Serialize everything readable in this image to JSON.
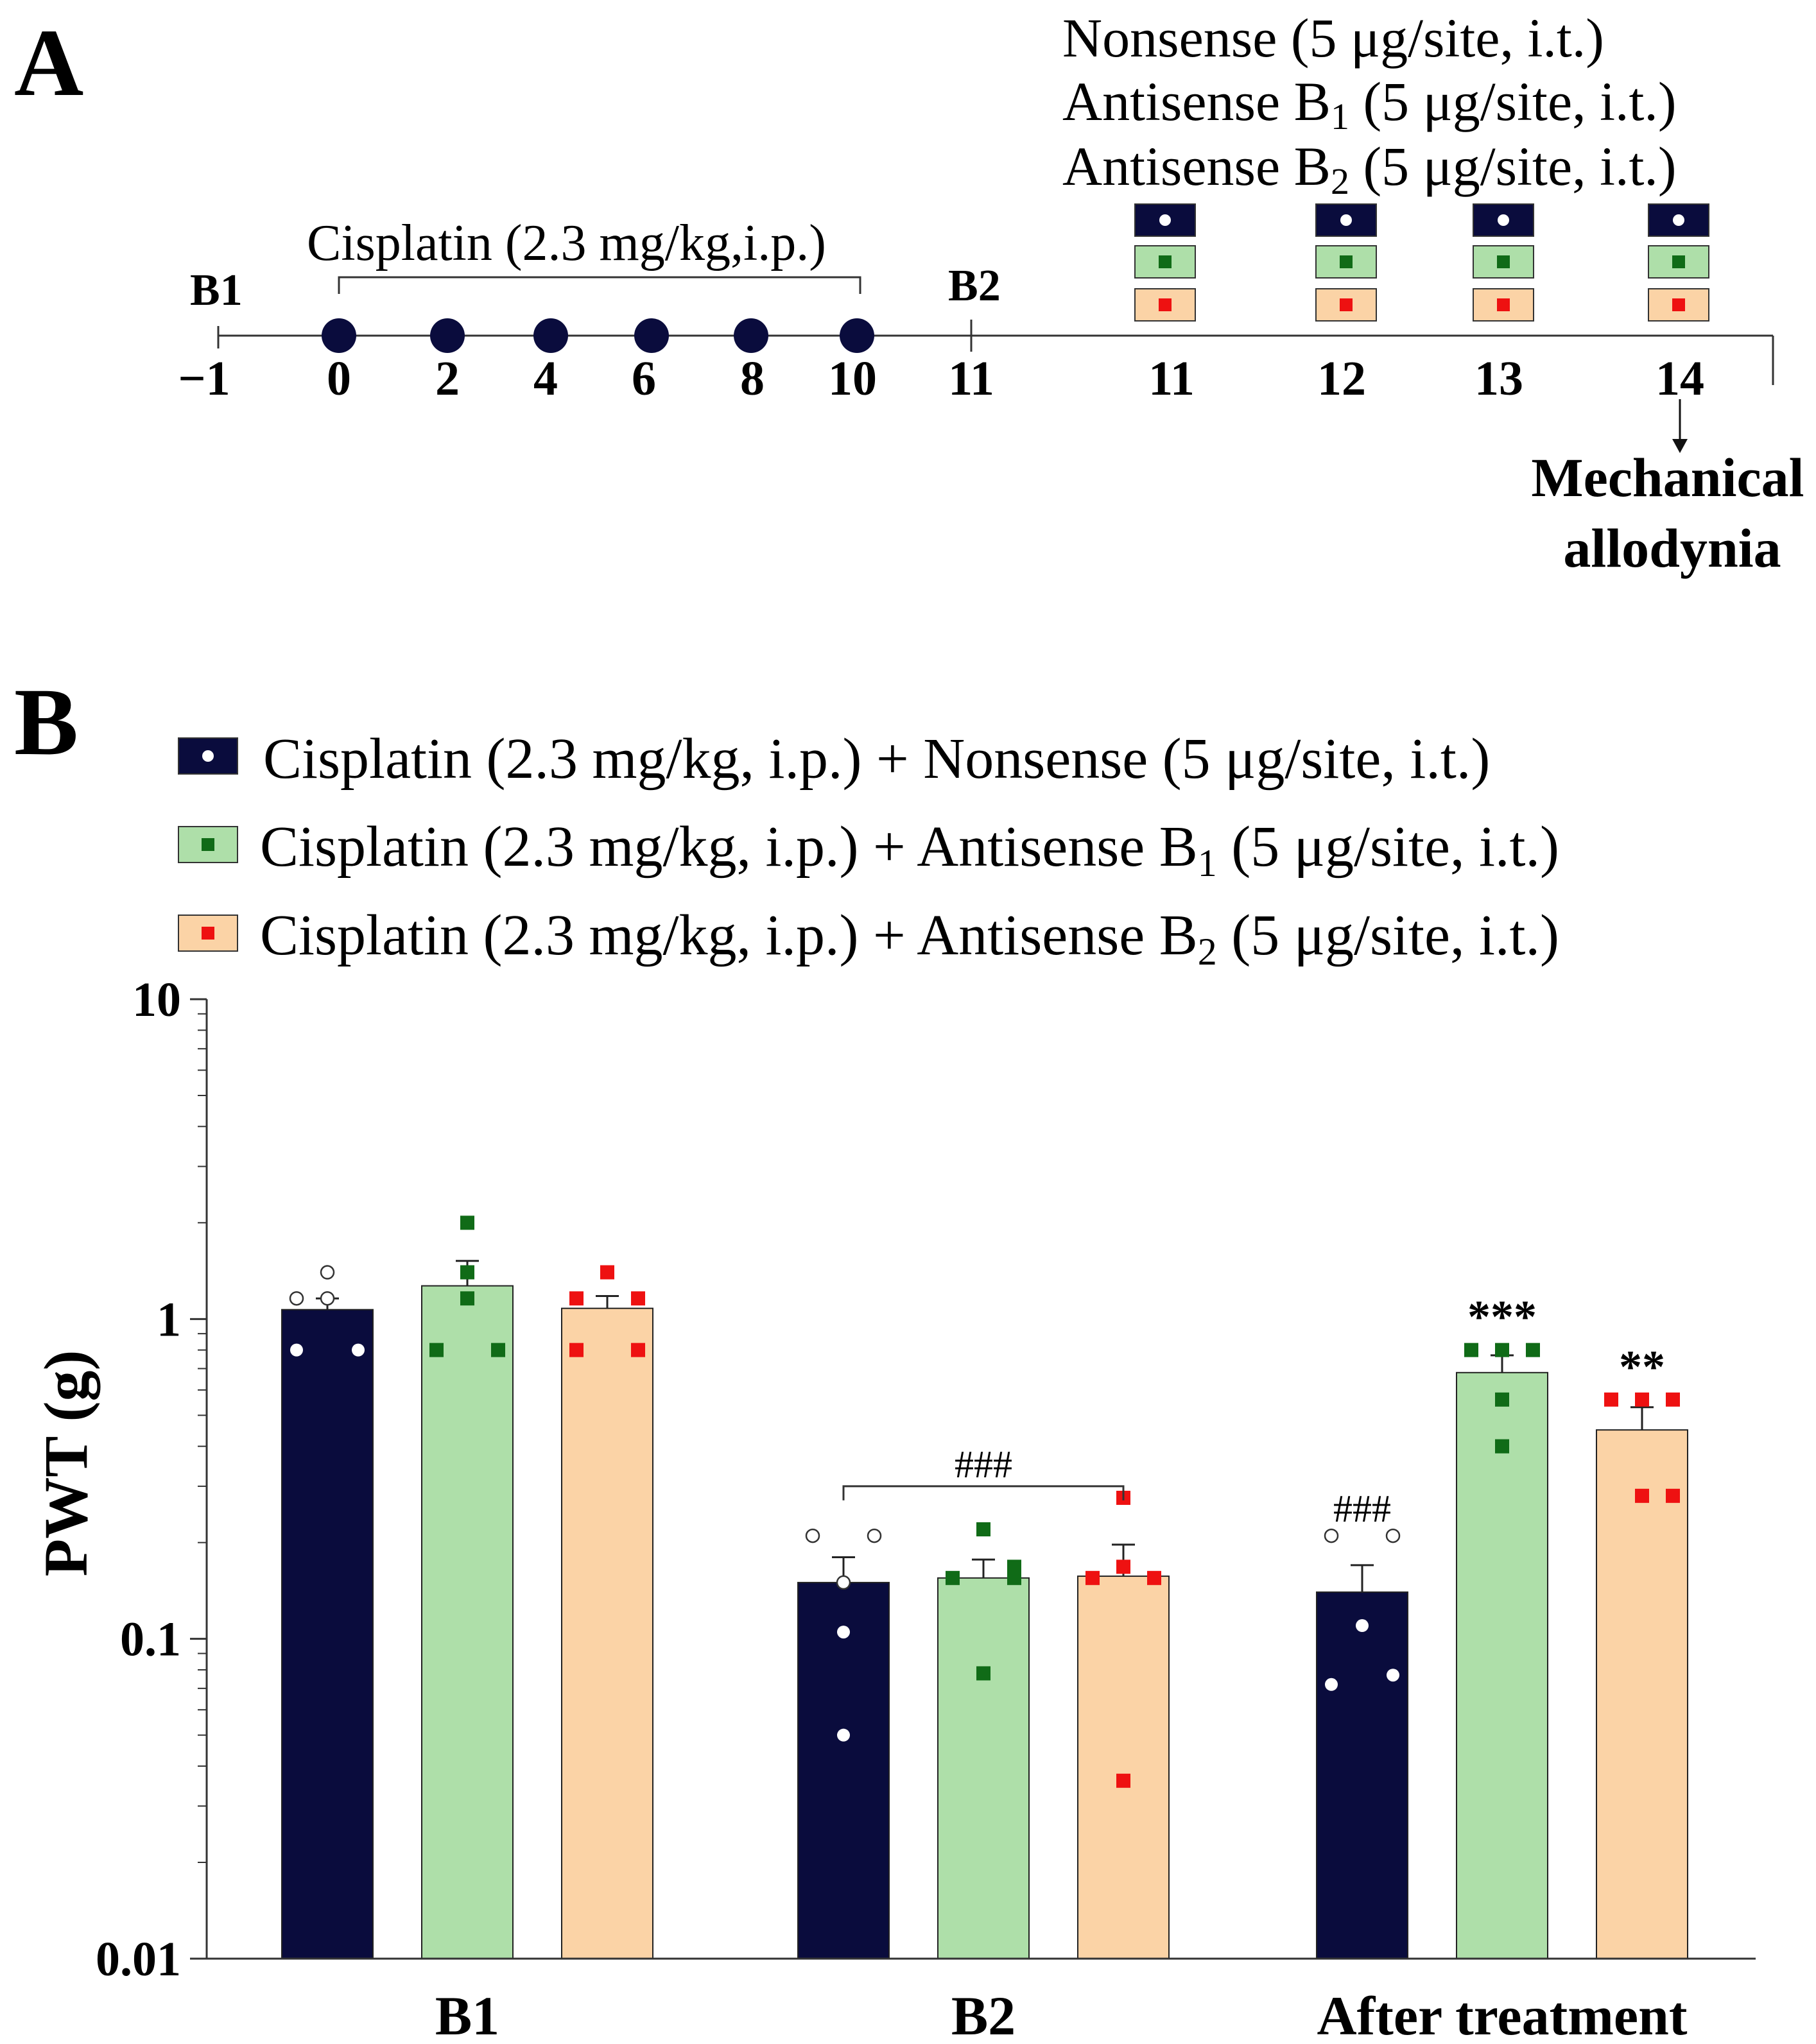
{
  "panel_a": {
    "label": "A",
    "treatments": [
      {
        "name": "Nonsense",
        "sub": "",
        "rest": " (5 μg/site, i.t.)",
        "marker": "circle"
      },
      {
        "name": "Antisense B",
        "sub": "1",
        "rest": " (5 μg/site, i.t.)",
        "marker": "square-green"
      },
      {
        "name": "Antisense B",
        "sub": "2",
        "rest": " (5 μg/site, i.t.)",
        "marker": "square-red"
      }
    ],
    "cisplatin_label": "Cisplatin (2.3 mg/kg,i.p.)",
    "baseline1": "B1",
    "baseline2": "B2",
    "timeline_days": [
      "−1",
      "0",
      "2",
      "4",
      "6",
      "8",
      "10",
      "11",
      "11",
      "12",
      "13",
      "14"
    ],
    "injection_days": [
      "0",
      "2",
      "4",
      "6",
      "8",
      "10"
    ],
    "treatment_days": [
      "11",
      "12",
      "13",
      "14"
    ],
    "outcome_line1": "Mechanical",
    "outcome_line2": "allodynia"
  },
  "panel_b": {
    "label": "B",
    "legend": [
      {
        "text": "Cisplatin (2.3 mg/kg, i.p.) + Nonsense (5 μg/site, i.t.)",
        "pre": "Cisplatin (2.3 mg/kg, i.p.) + Nonsense",
        "sub": "",
        "post": " (5 μg/site, i.t.)"
      },
      {
        "text": "Cisplatin (2.3 mg/kg, i.p.) + Antisense B1 (5 μg/site, i.t.)",
        "pre": "Cisplatin (2.3 mg/kg, i.p.) + Antisense B",
        "sub": "1",
        "post": " (5 μg/site, i.t.)"
      },
      {
        "text": "Cisplatin (2.3 mg/kg, i.p.) + Antisense B2 (5 μg/site, i.t.)",
        "pre": "Cisplatin (2.3 mg/kg, i.p.) + Antisense B",
        "sub": "2",
        "post": " (5 μg/site, i.t.)"
      }
    ]
  },
  "colors": {
    "nonsense": "#0a0c3d",
    "antisense_b1": "#aedfa9",
    "antisense_b2": "#fbd3a6",
    "b1_marker": "#106b17",
    "b2_marker": "#ee1111",
    "axis": "#333333"
  },
  "chart_data": {
    "type": "bar",
    "scale": "log",
    "ylabel": "PWT (g)",
    "ylim": [
      0.01,
      10
    ],
    "yticks": [
      0.01,
      0.1,
      1,
      10
    ],
    "ytick_labels": [
      "0.01",
      "0.1",
      "1",
      "10"
    ],
    "categories": [
      "B1",
      "B2",
      "After treatment"
    ],
    "series": [
      {
        "name": "Cisplatin (2.3 mg/kg, i.p.) + Nonsense (5 μg/site, i.t.)",
        "key": "nonsense",
        "values": [
          1.07,
          0.15,
          0.14
        ],
        "sem": [
          0.09,
          0.03,
          0.03
        ],
        "points": [
          [
            0.8,
            1.16,
            1.4,
            1.16,
            0.8
          ],
          [
            0.21,
            0.15,
            0.105,
            0.05,
            0.21
          ],
          [
            0.21,
            0.072,
            0.11,
            0.077,
            0.21
          ]
        ]
      },
      {
        "name": "Cisplatin (2.3 mg/kg, i.p.) + Antisense B1 (5 μg/site, i.t.)",
        "key": "antisense_b1",
        "values": [
          1.27,
          0.155,
          0.68
        ],
        "sem": [
          0.25,
          0.022,
          0.09
        ],
        "points": [
          [
            0.8,
            1.16,
            2.0,
            1.4,
            0.8
          ],
          [
            0.155,
            0.22,
            0.078,
            0.155,
            0.168
          ],
          [
            0.8,
            0.8,
            0.56,
            0.4,
            0.8
          ]
        ]
      },
      {
        "name": "Cisplatin (2.3 mg/kg, i.p.) + Antisense B2 (5 μg/site, i.t.)",
        "key": "antisense_b2",
        "values": [
          1.08,
          0.157,
          0.45
        ],
        "sem": [
          0.1,
          0.04,
          0.08
        ],
        "points": [
          [
            1.16,
            0.8,
            1.4,
            1.16,
            0.8
          ],
          [
            0.155,
            0.168,
            0.276,
            0.036,
            0.155
          ],
          [
            0.56,
            0.28,
            0.56,
            0.56,
            0.28
          ]
        ]
      }
    ],
    "annotations": [
      {
        "text": "###",
        "category": "B2",
        "type": "bracket"
      },
      {
        "text": "###",
        "category": "After treatment",
        "series": 0
      },
      {
        "text": "***",
        "category": "After treatment",
        "series": 1
      },
      {
        "text": "**",
        "category": "After treatment",
        "series": 2
      }
    ]
  }
}
